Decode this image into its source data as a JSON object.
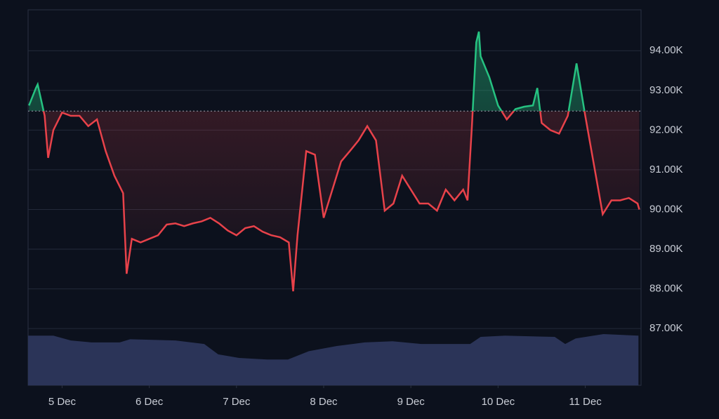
{
  "chart_data": {
    "type": "line",
    "x": [
      -0.38,
      -0.3,
      -0.28,
      -0.2,
      -0.16,
      -0.1,
      0,
      0.1,
      0.2,
      0.3,
      0.4,
      0.5,
      0.6,
      0.7,
      0.74,
      0.8,
      0.9,
      1.0,
      1.1,
      1.2,
      1.3,
      1.4,
      1.5,
      1.6,
      1.7,
      1.8,
      1.9,
      2.0,
      2.1,
      2.2,
      2.3,
      2.4,
      2.5,
      2.6,
      2.65,
      2.7,
      2.8,
      2.9,
      3.0,
      3.1,
      3.2,
      3.3,
      3.4,
      3.5,
      3.6,
      3.7,
      3.8,
      3.9,
      4.0,
      4.1,
      4.2,
      4.3,
      4.4,
      4.5,
      4.6,
      4.65,
      4.7,
      4.75,
      4.78,
      4.8,
      4.9,
      5.0,
      5.1,
      5.2,
      5.3,
      5.4,
      5.45,
      5.5,
      5.6,
      5.7,
      5.8,
      5.9,
      6.0,
      6.1,
      6.2,
      6.3,
      6.4,
      6.5,
      6.6,
      6.62
    ],
    "series": [
      {
        "values": [
          92.62,
          93.06,
          93.15,
          92.36,
          91.3,
          92.0,
          92.44,
          92.36,
          92.36,
          92.1,
          92.27,
          91.47,
          90.85,
          90.41,
          88.38,
          89.26,
          89.17,
          89.26,
          89.35,
          89.62,
          89.65,
          89.58,
          89.65,
          89.7,
          89.79,
          89.65,
          89.47,
          89.35,
          89.53,
          89.58,
          89.44,
          89.35,
          89.3,
          89.17,
          87.94,
          89.35,
          91.47,
          91.38,
          89.79,
          90.5,
          91.21,
          91.47,
          91.74,
          92.1,
          91.74,
          89.97,
          90.15,
          90.85,
          90.5,
          90.15,
          90.15,
          89.97,
          90.5,
          90.23,
          90.5,
          90.23,
          92.1,
          94.21,
          94.48,
          93.86,
          93.33,
          92.62,
          92.27,
          92.53,
          92.59,
          92.62,
          93.06,
          92.18,
          92.0,
          91.91,
          92.36,
          93.68,
          92.36,
          91.12,
          89.88,
          90.23,
          90.23,
          90.29,
          90.15,
          90.0
        ],
        "color_up": "#26c281",
        "color_down": "#e8424a"
      }
    ],
    "reference_line": 92.48,
    "volume": {
      "x": [
        -0.39,
        -0.1,
        0.1,
        0.34,
        0.66,
        0.78,
        1.3,
        1.63,
        1.79,
        2.03,
        2.35,
        2.59,
        2.83,
        3.15,
        3.47,
        3.79,
        4.12,
        4.68,
        4.8,
        5.08,
        5.65,
        5.77,
        5.89,
        6.21,
        6.61
      ],
      "values": [
        86.82,
        86.82,
        86.7,
        86.65,
        86.65,
        86.73,
        86.7,
        86.61,
        86.35,
        86.26,
        86.22,
        86.22,
        86.43,
        86.56,
        86.65,
        86.68,
        86.61,
        86.61,
        86.79,
        86.82,
        86.79,
        86.61,
        86.75,
        86.86,
        86.82
      ],
      "color": "#2b3458"
    },
    "xlim": [
      -0.39,
      6.64
    ],
    "xticks": [
      {
        "value": 0,
        "label": "5 Dec"
      },
      {
        "value": 1,
        "label": "6 Dec"
      },
      {
        "value": 2,
        "label": "7 Dec"
      },
      {
        "value": 3,
        "label": "8 Dec"
      },
      {
        "value": 4,
        "label": "9 Dec"
      },
      {
        "value": 5,
        "label": "10 Dec"
      },
      {
        "value": 6,
        "label": "11 Dec"
      }
    ],
    "ylim": [
      85.57,
      95.03
    ],
    "yticks": [
      {
        "value": 87,
        "label": "87.00K"
      },
      {
        "value": 88,
        "label": "88.00K"
      },
      {
        "value": 89,
        "label": "89.00K"
      },
      {
        "value": 90,
        "label": "90.00K"
      },
      {
        "value": 91,
        "label": "91.00K"
      },
      {
        "value": 92,
        "label": "92.00K"
      },
      {
        "value": 93,
        "label": "93.00K"
      },
      {
        "value": 94,
        "label": "94.00K"
      }
    ],
    "grid": true
  }
}
